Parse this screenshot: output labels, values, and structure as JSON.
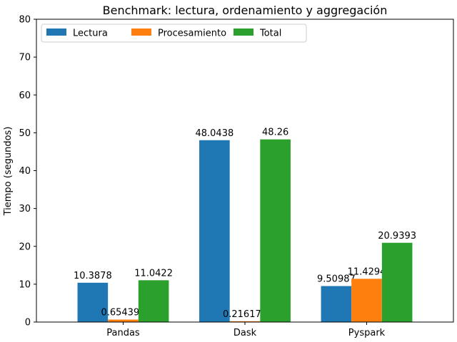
{
  "chart_data": {
    "type": "bar",
    "title": "Benchmark: lectura, ordenamiento y aggregación",
    "xlabel": "",
    "ylabel": "Tiempo (segundos)",
    "categories": [
      "Pandas",
      "Dask",
      "Pyspark"
    ],
    "ylim": [
      0,
      80
    ],
    "yticks": [
      0,
      10,
      20,
      30,
      40,
      50,
      60,
      70,
      80
    ],
    "grid": false,
    "legend_position": "top-left",
    "series": [
      {
        "name": "Lectura",
        "color": "#1f77b4",
        "values": [
          10.3878,
          48.0438,
          9.50987
        ],
        "labels": [
          "10.3878",
          "48.0438",
          "9.50987"
        ]
      },
      {
        "name": "Procesamiento",
        "color": "#ff7f0e",
        "values": [
          0.654399,
          0.216177,
          11.4294
        ],
        "labels": [
          "0.654399",
          "0.216177",
          "11.4294"
        ]
      },
      {
        "name": "Total",
        "color": "#2ca02c",
        "values": [
          11.0422,
          48.26,
          20.9393
        ],
        "labels": [
          "11.0422",
          "48.26",
          "20.9393"
        ]
      }
    ]
  }
}
